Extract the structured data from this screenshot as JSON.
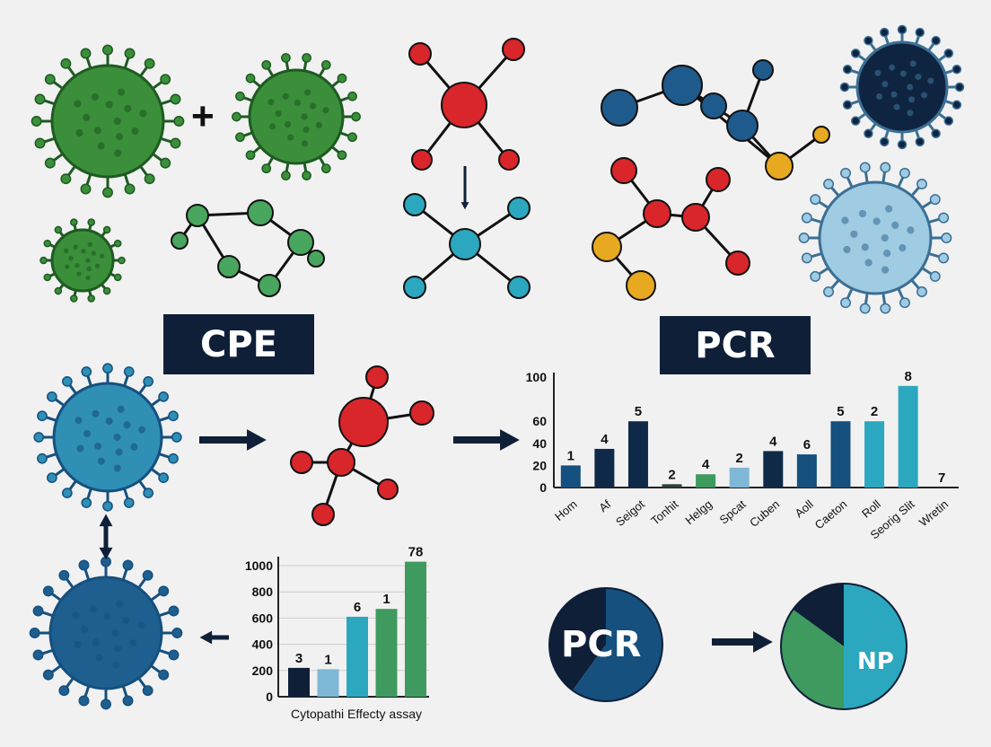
{
  "labels": {
    "cpe": "CPE",
    "pcr": "PCR",
    "plus": "+"
  },
  "pies": {
    "left_label": "PCR",
    "right_label": "NP"
  },
  "colors": {
    "navy": "#0f1f38",
    "blue": "#15507e",
    "teal": "#2ba8bf",
    "green": "#3e9a5e",
    "red": "#d8262a",
    "yellow": "#e7a91f",
    "light_blue": "#7fb8d6"
  },
  "chart_data": [
    {
      "type": "bar",
      "ylim": [
        0,
        100
      ],
      "yticks": [
        0,
        20,
        40,
        60,
        100
      ],
      "categories": [
        "Hom",
        "Af",
        "Seigot",
        "Tonhit",
        "Helgg",
        "Spcat",
        "Cuben",
        "Aoll",
        "Caeton",
        "Roll",
        "Seorig Slit",
        "Wretin"
      ],
      "values": [
        20,
        35,
        60,
        3,
        12,
        18,
        33,
        30,
        60,
        60,
        92,
        0
      ],
      "data_labels": [
        "1",
        "4",
        "5",
        "2",
        "4",
        "2",
        "4",
        "6",
        "5",
        "2",
        "8",
        "7"
      ],
      "colors": [
        "#15507e",
        "#0f2a48",
        "#0f2a48",
        "#2f3f3f",
        "#3e9a5e",
        "#7fb8d6",
        "#0f2a48",
        "#15507e",
        "#15507e",
        "#2ba8bf",
        "#2ba8bf",
        "#2ba8bf"
      ]
    },
    {
      "type": "bar",
      "xlabel": "Cytopathi Effecty assay",
      "ylim": [
        0,
        1000
      ],
      "yticks": [
        0,
        200,
        400,
        600,
        800,
        1000
      ],
      "values": [
        220,
        210,
        610,
        670,
        1030
      ],
      "data_labels": [
        "3",
        "1",
        "6",
        "1",
        "78"
      ],
      "colors": [
        "#0f1f38",
        "#7fb8d6",
        "#2ba8bf",
        "#3e9a5e",
        "#3e9a5e"
      ]
    },
    {
      "type": "pie",
      "label": "PCR",
      "values": [
        40,
        60
      ],
      "colors": [
        "#0f1f38",
        "#15507e"
      ]
    },
    {
      "type": "pie",
      "label": "NP",
      "values": [
        15,
        35,
        50
      ],
      "colors": [
        "#0f1f38",
        "#3e9a5e",
        "#2ba8bf"
      ]
    }
  ]
}
